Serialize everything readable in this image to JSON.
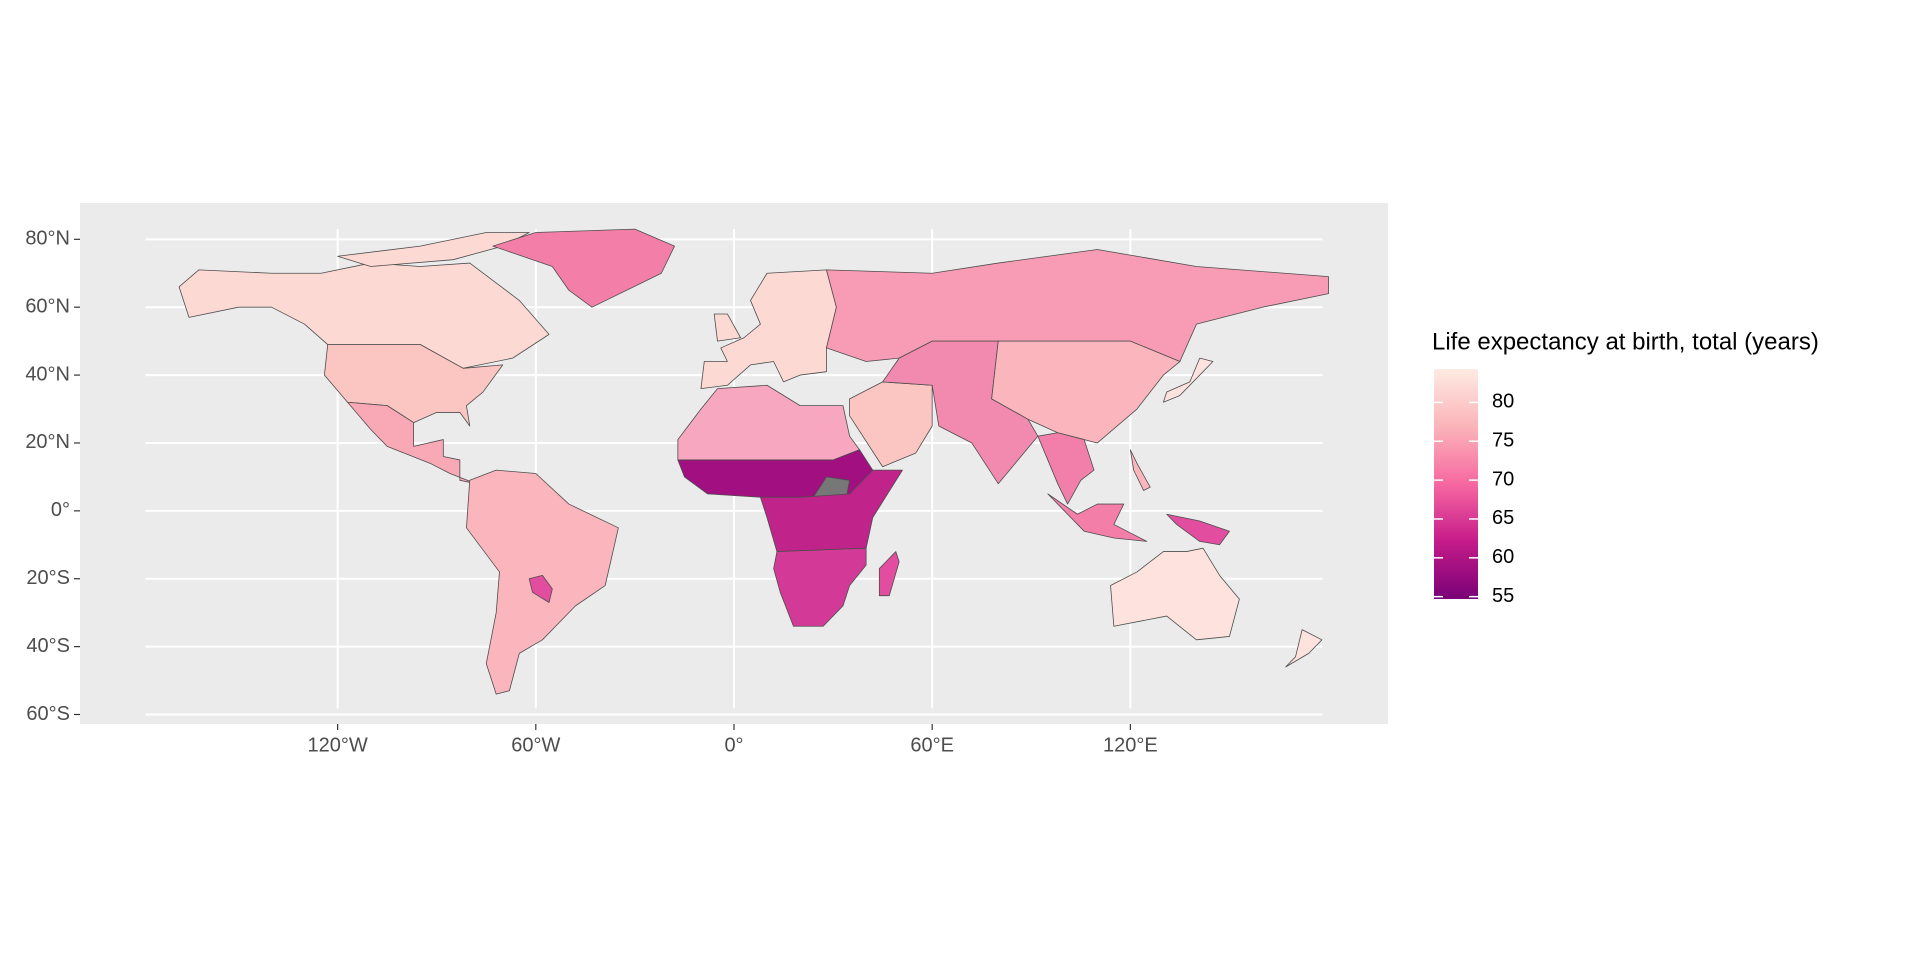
{
  "chart_data": {
    "type": "choropleth",
    "legend_title": "Life expectancy at birth, total (years)",
    "xlim": [
      -198,
      198
    ],
    "ylim": [
      -62.8,
      90.7
    ],
    "xticks": [
      {
        "value": -120,
        "label": "120°W"
      },
      {
        "value": -60,
        "label": "60°W"
      },
      {
        "value": 0,
        "label": "0°"
      },
      {
        "value": 60,
        "label": "60°E"
      },
      {
        "value": 120,
        "label": "120°E"
      }
    ],
    "yticks": [
      {
        "value": -60,
        "label": "60°S"
      },
      {
        "value": -40,
        "label": "40°S"
      },
      {
        "value": -20,
        "label": "20°S"
      },
      {
        "value": 0,
        "label": "0°"
      },
      {
        "value": 20,
        "label": "20°N"
      },
      {
        "value": 40,
        "label": "40°N"
      },
      {
        "value": 60,
        "label": "60°N"
      },
      {
        "value": 80,
        "label": "80°N"
      }
    ],
    "grid": true,
    "legend_lim": [
      54.7,
      84.3
    ],
    "legend_ticks": [
      55,
      60,
      65,
      70,
      75,
      80
    ],
    "colors": [
      "#7a0177",
      "#c51b8a",
      "#f768a1",
      "#fbb4b9",
      "#feebe2"
    ]
  }
}
